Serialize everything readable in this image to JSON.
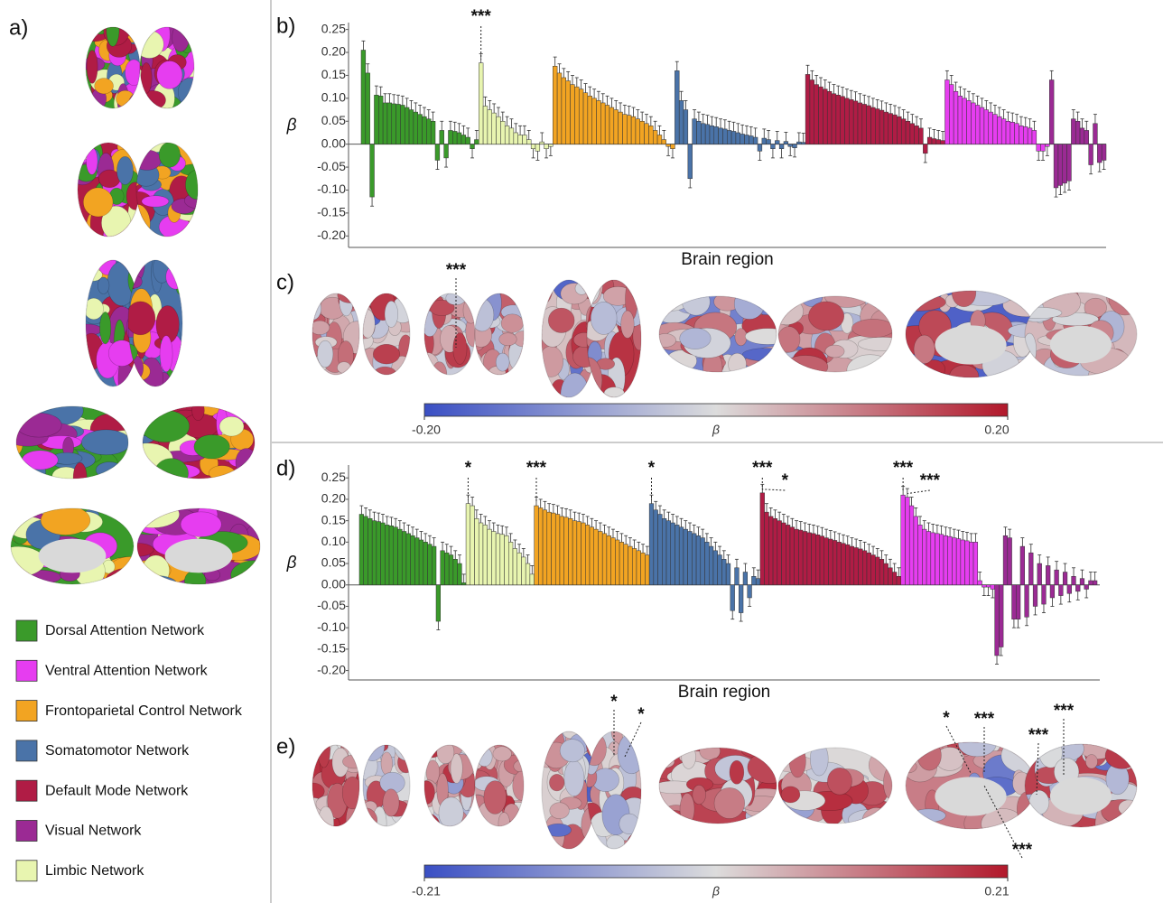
{
  "panels": {
    "a": {
      "label": "a)"
    },
    "c": {
      "label": "c)",
      "annotations": [
        "***"
      ],
      "colorbar": {
        "label": "β",
        "lim": [
          -0.2,
          0.2
        ],
        "ticks": [
          {
            "value": -0.2,
            "label": "-0.20"
          },
          {
            "value": 0.2,
            "label": "0.20"
          }
        ],
        "colormap": [
          "#3a4fc4",
          "#dcdcdc",
          "#b2182b"
        ]
      }
    },
    "e": {
      "label": "e)",
      "annotations": [
        "*",
        "*",
        "*",
        "***",
        "***",
        "***",
        "***"
      ],
      "colorbar": {
        "label": "β",
        "lim": [
          -0.21,
          0.21
        ],
        "ticks": [
          {
            "value": -0.21,
            "label": "-0.21"
          },
          {
            "value": 0.21,
            "label": "0.21"
          }
        ],
        "colormap": [
          "#3a4fc4",
          "#dcdcdc",
          "#b2182b"
        ]
      }
    }
  },
  "chart_data": [
    {
      "type": "bar",
      "panel_label": "b)",
      "ylabel": "β",
      "xlabel": "Brain region",
      "ylim": [
        -0.225,
        0.265
      ],
      "yticks": [
        {
          "value": 0.25,
          "label": "0.25"
        },
        {
          "value": 0.2,
          "label": "0.20"
        },
        {
          "value": 0.15,
          "label": "0.15"
        },
        {
          "value": 0.1,
          "label": "0.10"
        },
        {
          "value": 0.05,
          "label": "0.05"
        },
        {
          "value": 0,
          "label": "0.00"
        },
        {
          "value": -0.05,
          "label": "-0.05"
        },
        {
          "value": -0.1,
          "label": "-0.10"
        },
        {
          "value": -0.15,
          "label": "-0.15"
        },
        {
          "value": -0.2,
          "label": "-0.20"
        }
      ],
      "series": [
        {
          "name": "Dorsal Attention Network",
          "color": "#3a9a2a",
          "values": [
            0.205,
            0.155,
            -0.115,
            0.107,
            0.105,
            0.09,
            0.09,
            0.088,
            0.087,
            0.085,
            0.08,
            0.075,
            0.07,
            0.065,
            0.06,
            0.055,
            0.05,
            -0.035,
            0.03,
            -0.03,
            0.03,
            0.028,
            0.025,
            0.02,
            0.015,
            -0.01,
            0.01
          ],
          "errors": [
            0.02,
            0.02,
            0.02,
            0.02,
            0.02,
            0.02,
            0.02,
            0.02,
            0.02,
            0.02,
            0.02,
            0.02,
            0.02,
            0.02,
            0.02,
            0.02,
            0.02,
            0.02,
            0.02,
            0.02,
            0.02,
            0.02,
            0.02,
            0.02,
            0.02,
            0.02,
            0.02
          ]
        },
        {
          "name": "Limbic Network",
          "color": "#e8f5b0",
          "values": [
            0.177,
            0.083,
            0.075,
            0.068,
            0.06,
            0.05,
            0.04,
            0.035,
            0.025,
            0.02,
            0.02,
            0.01,
            -0.01,
            -0.015,
            0.005,
            -0.01,
            -0.005
          ],
          "errors": [
            0.02,
            0.02,
            0.02,
            0.02,
            0.02,
            0.02,
            0.02,
            0.02,
            0.02,
            0.02,
            0.02,
            0.02,
            0.02,
            0.02,
            0.02,
            0.02,
            0.02
          ]
        },
        {
          "name": "Frontoparietal Control Network",
          "color": "#f2a422",
          "values": [
            0.17,
            0.155,
            0.145,
            0.138,
            0.13,
            0.125,
            0.12,
            0.112,
            0.105,
            0.1,
            0.095,
            0.09,
            0.085,
            0.08,
            0.075,
            0.07,
            0.065,
            0.063,
            0.06,
            0.055,
            0.05,
            0.045,
            0.04,
            0.03,
            0.02,
            0.01,
            -0.005,
            -0.01
          ],
          "errors": [
            0.02,
            0.02,
            0.02,
            0.02,
            0.02,
            0.02,
            0.02,
            0.02,
            0.02,
            0.02,
            0.02,
            0.02,
            0.02,
            0.02,
            0.02,
            0.02,
            0.02,
            0.02,
            0.02,
            0.02,
            0.02,
            0.02,
            0.02,
            0.02,
            0.02,
            0.02,
            0.02,
            0.02
          ]
        },
        {
          "name": "Somatomotor Network",
          "color": "#4a73a8",
          "values": [
            0.16,
            0.095,
            0.075,
            -0.075,
            0.055,
            0.05,
            0.045,
            0.043,
            0.04,
            0.038,
            0.035,
            0.033,
            0.03,
            0.028,
            0.025,
            0.022,
            0.02,
            0.018,
            0.015,
            -0.015,
            0.013,
            0.01,
            -0.01,
            0.008,
            -0.01,
            0.006,
            -0.005,
            -0.008,
            0.005,
            0.004
          ],
          "errors": [
            0.02,
            0.02,
            0.02,
            0.02,
            0.02,
            0.02,
            0.02,
            0.02,
            0.02,
            0.02,
            0.02,
            0.02,
            0.02,
            0.02,
            0.02,
            0.02,
            0.02,
            0.02,
            0.02,
            0.02,
            0.02,
            0.02,
            0.02,
            0.02,
            0.02,
            0.02,
            0.02,
            0.02,
            0.02,
            0.02
          ]
        },
        {
          "name": "Default Mode Network",
          "color": "#b01c45",
          "values": [
            0.152,
            0.14,
            0.13,
            0.125,
            0.12,
            0.115,
            0.11,
            0.107,
            0.104,
            0.1,
            0.097,
            0.094,
            0.09,
            0.087,
            0.084,
            0.08,
            0.077,
            0.074,
            0.07,
            0.067,
            0.064,
            0.06,
            0.055,
            0.05,
            0.045,
            0.04,
            0.035,
            -0.02,
            0.015,
            0.012,
            0.01,
            0.008
          ],
          "errors": [
            0.02,
            0.02,
            0.02,
            0.02,
            0.02,
            0.02,
            0.02,
            0.02,
            0.02,
            0.02,
            0.02,
            0.02,
            0.02,
            0.02,
            0.02,
            0.02,
            0.02,
            0.02,
            0.02,
            0.02,
            0.02,
            0.02,
            0.02,
            0.02,
            0.02,
            0.02,
            0.02,
            0.02,
            0.02,
            0.02,
            0.02,
            0.02
          ]
        },
        {
          "name": "Ventral Attention Network",
          "color": "#e63df0",
          "values": [
            0.14,
            0.13,
            0.115,
            0.105,
            0.1,
            0.095,
            0.09,
            0.085,
            0.08,
            0.075,
            0.07,
            0.065,
            0.06,
            0.055,
            0.05,
            0.048,
            0.045,
            0.04,
            0.038,
            0.035,
            0.03,
            -0.015,
            -0.015,
            -0.005
          ],
          "errors": [
            0.02,
            0.02,
            0.02,
            0.02,
            0.02,
            0.02,
            0.02,
            0.02,
            0.02,
            0.02,
            0.02,
            0.02,
            0.02,
            0.02,
            0.02,
            0.02,
            0.02,
            0.02,
            0.02,
            0.02,
            0.02,
            0.02,
            0.02,
            0.02
          ]
        },
        {
          "name": "Visual Network",
          "color": "#9b2a94",
          "values": [
            0.14,
            -0.095,
            -0.09,
            -0.085,
            -0.08,
            0.055,
            0.05,
            0.035,
            0.03,
            -0.045,
            0.045,
            -0.04,
            -0.035
          ],
          "errors": [
            0.02,
            0.02,
            0.02,
            0.02,
            0.02,
            0.02,
            0.02,
            0.02,
            0.02,
            0.02,
            0.02,
            0.02,
            0.02
          ]
        }
      ],
      "annotations": [
        {
          "text": "***",
          "series": 1,
          "index": 0
        }
      ]
    },
    {
      "type": "bar",
      "panel_label": "d)",
      "ylabel": "β",
      "xlabel": "Brain region",
      "ylim": [
        -0.222,
        0.28
      ],
      "yticks": [
        {
          "value": 0.25,
          "label": "0.25"
        },
        {
          "value": 0.2,
          "label": "0.20"
        },
        {
          "value": 0.15,
          "label": "0.15"
        },
        {
          "value": 0.1,
          "label": "0.10"
        },
        {
          "value": 0.05,
          "label": "0.05"
        },
        {
          "value": 0,
          "label": "0.00"
        },
        {
          "value": -0.05,
          "label": "-0.05"
        },
        {
          "value": -0.1,
          "label": "-0.10"
        },
        {
          "value": -0.15,
          "label": "-0.15"
        },
        {
          "value": -0.2,
          "label": "-0.20"
        }
      ],
      "series": [
        {
          "color": "#3a9a2a",
          "values": [
            0.165,
            0.16,
            0.155,
            0.15,
            0.148,
            0.145,
            0.14,
            0.138,
            0.135,
            0.13,
            0.125,
            0.12,
            0.115,
            0.11,
            0.105,
            0.1,
            0.095,
            0.09,
            -0.085,
            0.08,
            0.075,
            0.07,
            0.06,
            0.05,
            0.005
          ],
          "errors": [
            0.02,
            0.02,
            0.02,
            0.02,
            0.02,
            0.02,
            0.02,
            0.02,
            0.02,
            0.02,
            0.02,
            0.02,
            0.02,
            0.02,
            0.02,
            0.02,
            0.02,
            0.02,
            0.02,
            0.02,
            0.02,
            0.02,
            0.02,
            0.02,
            0.02
          ]
        },
        {
          "color": "#e8f5b0",
          "values": [
            0.19,
            0.185,
            0.155,
            0.145,
            0.14,
            0.13,
            0.125,
            0.12,
            0.118,
            0.115,
            0.1,
            0.085,
            0.075,
            0.065,
            0.05,
            0.025
          ],
          "errors": [
            0.02,
            0.02,
            0.02,
            0.02,
            0.02,
            0.02,
            0.02,
            0.02,
            0.02,
            0.02,
            0.02,
            0.02,
            0.02,
            0.02,
            0.02,
            0.02
          ]
        },
        {
          "color": "#f2a422",
          "values": [
            0.185,
            0.18,
            0.175,
            0.17,
            0.168,
            0.165,
            0.16,
            0.158,
            0.155,
            0.15,
            0.148,
            0.145,
            0.14,
            0.135,
            0.13,
            0.125,
            0.12,
            0.115,
            0.11,
            0.105,
            0.1,
            0.095,
            0.09,
            0.085,
            0.08,
            0.075,
            0.07
          ],
          "errors": [
            0.02,
            0.02,
            0.02,
            0.02,
            0.02,
            0.02,
            0.02,
            0.02,
            0.02,
            0.02,
            0.02,
            0.02,
            0.02,
            0.02,
            0.02,
            0.02,
            0.02,
            0.02,
            0.02,
            0.02,
            0.02,
            0.02,
            0.02,
            0.02,
            0.02,
            0.02,
            0.02
          ]
        },
        {
          "color": "#4a73a8",
          "values": [
            0.19,
            0.175,
            0.165,
            0.155,
            0.15,
            0.145,
            0.14,
            0.135,
            0.13,
            0.125,
            0.12,
            0.115,
            0.11,
            0.1,
            0.09,
            0.08,
            0.07,
            0.06,
            0.05,
            -0.06,
            0.04,
            -0.065,
            0.03,
            -0.03,
            0.02,
            0.015
          ],
          "errors": [
            0.02,
            0.02,
            0.02,
            0.02,
            0.02,
            0.02,
            0.02,
            0.02,
            0.02,
            0.02,
            0.02,
            0.02,
            0.02,
            0.02,
            0.02,
            0.02,
            0.02,
            0.02,
            0.02,
            0.02,
            0.02,
            0.02,
            0.02,
            0.02,
            0.02,
            0.02
          ]
        },
        {
          "color": "#b01c45",
          "values": [
            0.215,
            0.17,
            0.16,
            0.155,
            0.15,
            0.145,
            0.14,
            0.135,
            0.13,
            0.128,
            0.125,
            0.122,
            0.12,
            0.117,
            0.114,
            0.11,
            0.107,
            0.104,
            0.1,
            0.097,
            0.094,
            0.09,
            0.087,
            0.084,
            0.08,
            0.075,
            0.07,
            0.065,
            0.06,
            0.05,
            0.04,
            0.03,
            0.02
          ],
          "errors": [
            0.02,
            0.02,
            0.02,
            0.02,
            0.02,
            0.02,
            0.02,
            0.02,
            0.02,
            0.02,
            0.02,
            0.02,
            0.02,
            0.02,
            0.02,
            0.02,
            0.02,
            0.02,
            0.02,
            0.02,
            0.02,
            0.02,
            0.02,
            0.02,
            0.02,
            0.02,
            0.02,
            0.02,
            0.02,
            0.02,
            0.02,
            0.02,
            0.02
          ]
        },
        {
          "color": "#e63df0",
          "values": [
            0.21,
            0.205,
            0.185,
            0.16,
            0.14,
            0.13,
            0.125,
            0.122,
            0.12,
            0.118,
            0.115,
            0.113,
            0.11,
            0.108,
            0.105,
            0.103,
            0.1,
            0.1,
            0.01,
            -0.005,
            -0.005,
            -0.01
          ],
          "errors": [
            0.02,
            0.02,
            0.02,
            0.02,
            0.02,
            0.02,
            0.02,
            0.02,
            0.02,
            0.02,
            0.02,
            0.02,
            0.02,
            0.02,
            0.02,
            0.02,
            0.02,
            0.02,
            0.02,
            0.02,
            0.02,
            0.02
          ]
        },
        {
          "color": "#9b2a94",
          "values": [
            -0.165,
            -0.145,
            0.115,
            0.11,
            -0.08,
            -0.08,
            0.09,
            -0.075,
            0.075,
            -0.05,
            0.05,
            -0.045,
            0.045,
            -0.03,
            0.035,
            -0.025,
            0.03,
            -0.02,
            0.02,
            -0.015,
            0.015,
            -0.01,
            0.01,
            0.01
          ],
          "errors": [
            0.02,
            0.02,
            0.02,
            0.02,
            0.02,
            0.02,
            0.02,
            0.02,
            0.02,
            0.02,
            0.02,
            0.02,
            0.02,
            0.02,
            0.02,
            0.02,
            0.02,
            0.02,
            0.02,
            0.02,
            0.02,
            0.02,
            0.02,
            0.02
          ]
        }
      ],
      "annotations": [
        {
          "text": "*",
          "series": 1,
          "index": 0
        },
        {
          "text": "***",
          "series": 2,
          "index": 0
        },
        {
          "text": "*",
          "series": 3,
          "index": 0
        },
        {
          "text": "***",
          "series": 4,
          "index": 0
        },
        {
          "text": "*",
          "series": 4,
          "index": 0
        },
        {
          "text": "***",
          "series": 5,
          "index": 0
        },
        {
          "text": "***",
          "series": 5,
          "index": 1
        }
      ]
    }
  ]
}
